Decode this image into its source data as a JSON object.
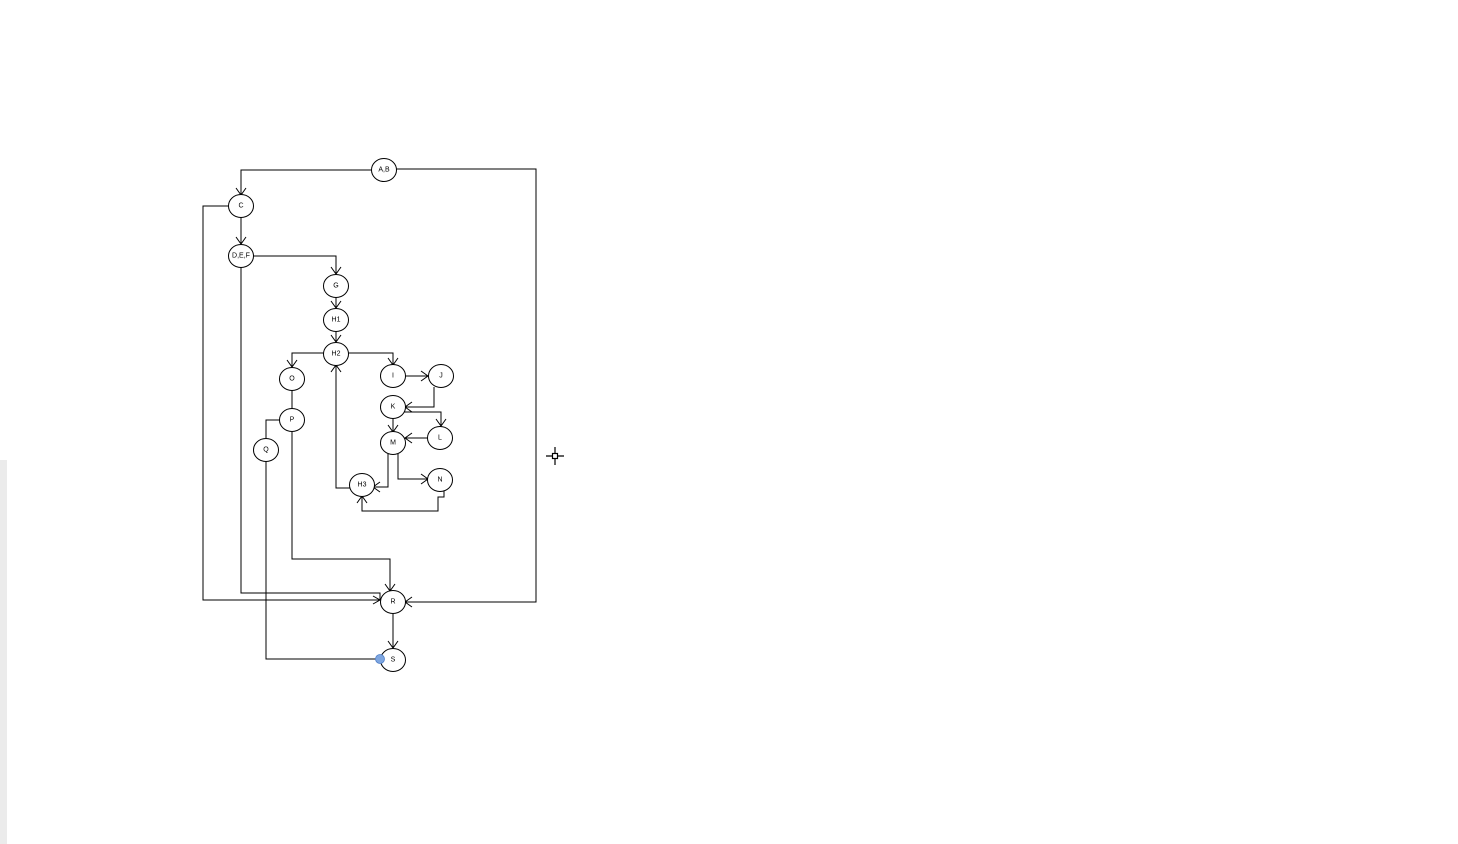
{
  "nodes": [
    {
      "id": "ab",
      "label": "A,B"
    },
    {
      "id": "c",
      "label": "C"
    },
    {
      "id": "def",
      "label": "D,E,F"
    },
    {
      "id": "g",
      "label": "G"
    },
    {
      "id": "h1",
      "label": "H1"
    },
    {
      "id": "h2",
      "label": "H2"
    },
    {
      "id": "o",
      "label": "O"
    },
    {
      "id": "i",
      "label": "I"
    },
    {
      "id": "j",
      "label": "J"
    },
    {
      "id": "k",
      "label": "K"
    },
    {
      "id": "p",
      "label": "P"
    },
    {
      "id": "q",
      "label": "Q"
    },
    {
      "id": "l",
      "label": "L"
    },
    {
      "id": "m",
      "label": "M"
    },
    {
      "id": "n",
      "label": "N"
    },
    {
      "id": "h3",
      "label": "H3"
    },
    {
      "id": "r",
      "label": "R"
    },
    {
      "id": "s",
      "label": "S"
    }
  ],
  "edges": [
    {
      "from": "ab",
      "to": "c"
    },
    {
      "from": "ab",
      "to": "r"
    },
    {
      "from": "c",
      "to": "def"
    },
    {
      "from": "c",
      "to": "r"
    },
    {
      "from": "def",
      "to": "g"
    },
    {
      "from": "def",
      "to": "r"
    },
    {
      "from": "g",
      "to": "h1"
    },
    {
      "from": "h1",
      "to": "h2"
    },
    {
      "from": "h2",
      "to": "o"
    },
    {
      "from": "h2",
      "to": "i"
    },
    {
      "from": "o",
      "to": "p"
    },
    {
      "from": "p",
      "to": "q"
    },
    {
      "from": "p",
      "to": "r"
    },
    {
      "from": "q",
      "to": "s"
    },
    {
      "from": "i",
      "to": "j"
    },
    {
      "from": "j",
      "to": "k"
    },
    {
      "from": "k",
      "to": "l"
    },
    {
      "from": "l",
      "to": "m"
    },
    {
      "from": "k",
      "to": "m"
    },
    {
      "from": "m",
      "to": "n"
    },
    {
      "from": "m",
      "to": "h3"
    },
    {
      "from": "n",
      "to": "h3"
    },
    {
      "from": "h3",
      "to": "h2"
    },
    {
      "from": "r",
      "to": "s"
    }
  ]
}
